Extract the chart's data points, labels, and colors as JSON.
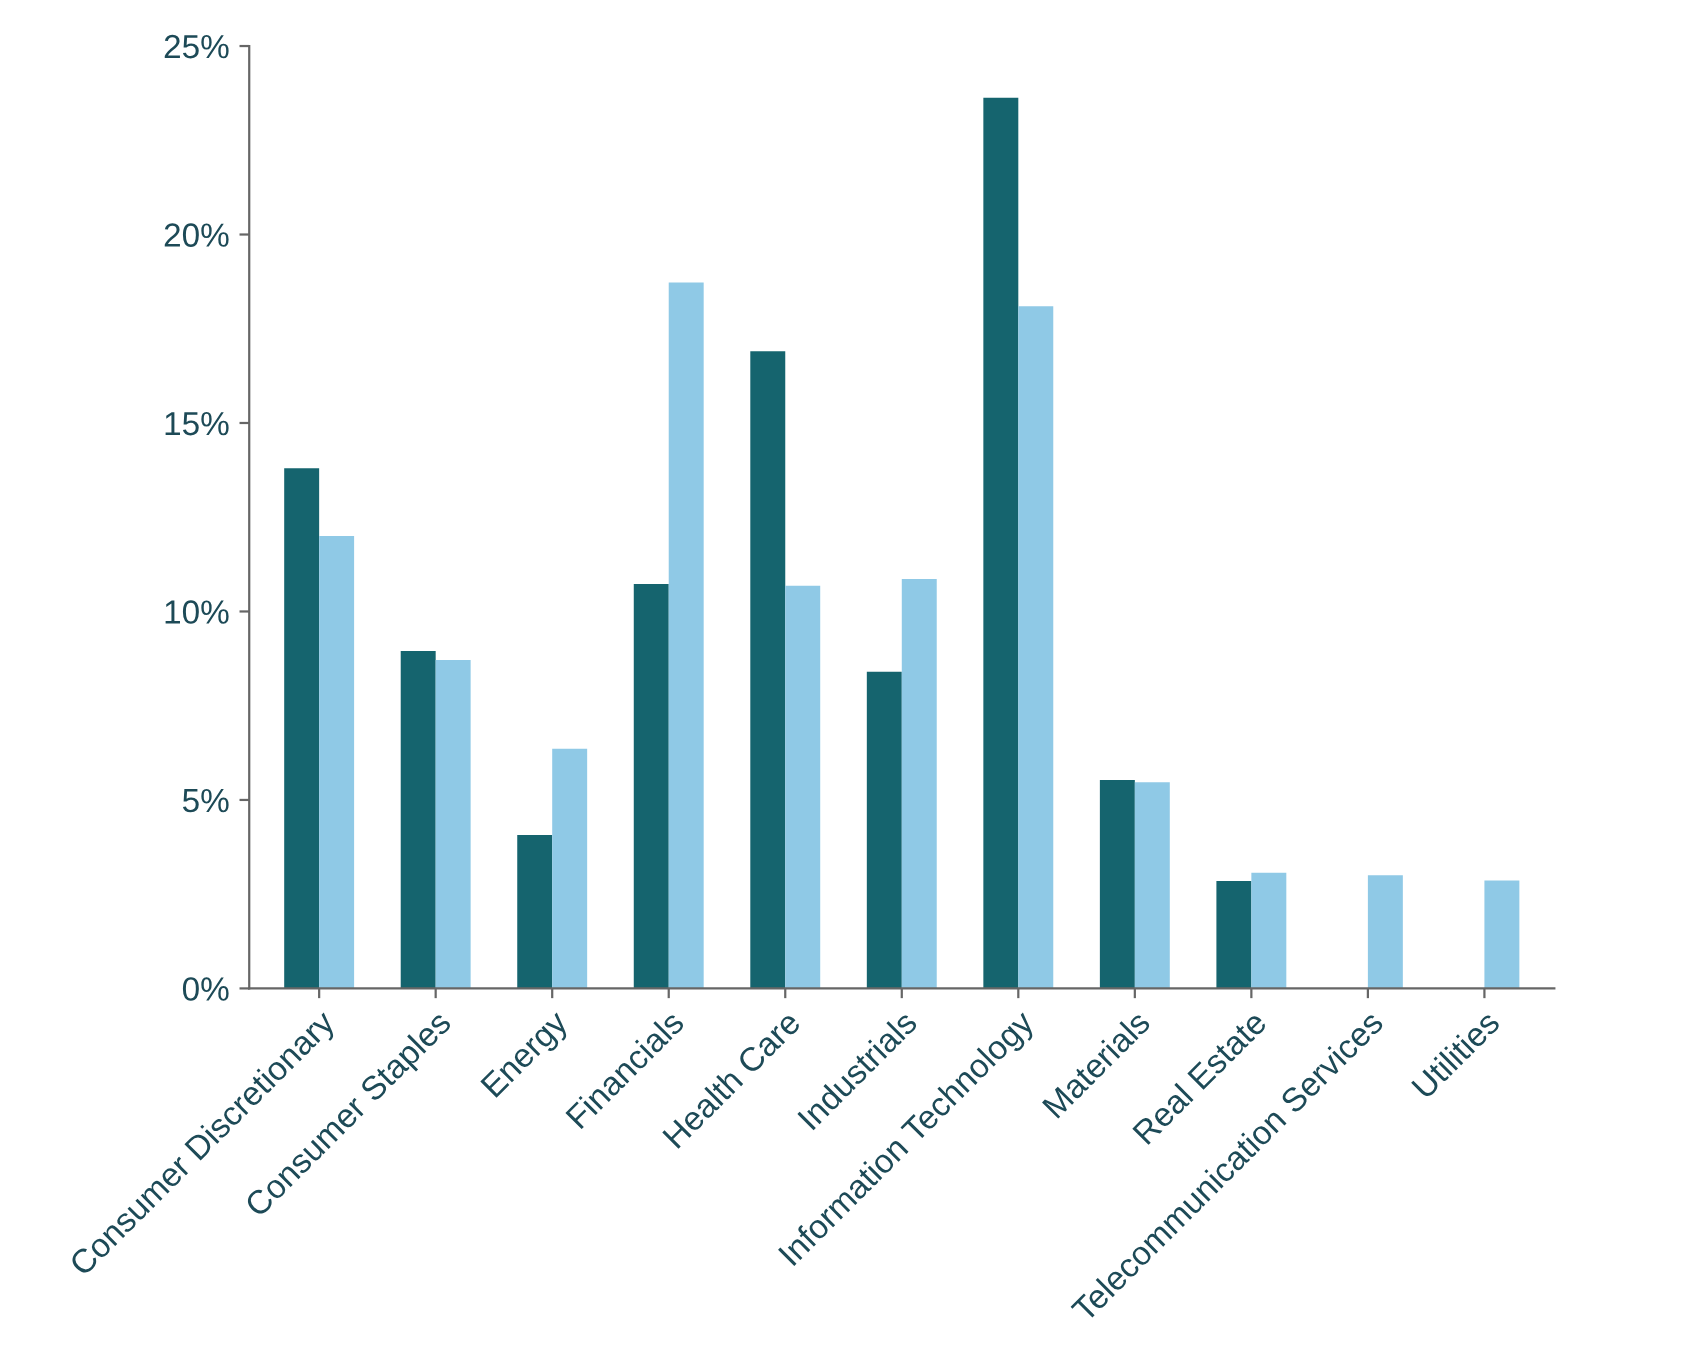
{
  "chart_data": {
    "type": "bar",
    "categories": [
      "Consumer Discretionary",
      "Consumer Staples",
      "Energy",
      "Financials",
      "Health Care",
      "Industrials",
      "Information Technology",
      "Materials",
      "Real Estate",
      "Telecommunication Services",
      "Utilities"
    ],
    "series": [
      {
        "color": "#15646e",
        "values": [
          13.8,
          8.95,
          4.07,
          10.73,
          16.9,
          8.4,
          23.63,
          5.53,
          2.85,
          null,
          null
        ]
      },
      {
        "color": "#8fc9e6",
        "values": [
          12.0,
          8.71,
          6.36,
          18.73,
          10.68,
          10.86,
          18.1,
          5.47,
          3.07,
          3.0,
          2.86
        ]
      }
    ],
    "ylim": [
      0,
      25
    ],
    "yticks": [
      {
        "value": 0,
        "label": "0%"
      },
      {
        "value": 5,
        "label": "5%"
      },
      {
        "value": 10,
        "label": "10%"
      },
      {
        "value": 15,
        "label": "15%"
      },
      {
        "value": 20,
        "label": "20%"
      },
      {
        "value": 25,
        "label": "25%"
      }
    ],
    "grid": false
  }
}
